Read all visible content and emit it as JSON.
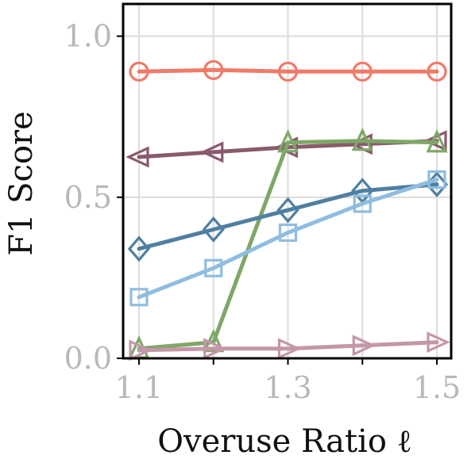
{
  "chart_data": {
    "type": "line",
    "xlabel": "Overuse Ratio ℓ",
    "ylabel": "F1 Score",
    "xlim": [
      1.1,
      1.5
    ],
    "ylim": [
      0.0,
      1.1
    ],
    "x_ticks": [
      1.1,
      1.3,
      1.5
    ],
    "x_tick_labels": [
      "1.1",
      "1.3",
      "1.5"
    ],
    "y_ticks": [
      0.0,
      0.5,
      1.0
    ],
    "y_tick_labels": [
      "0.0",
      "0.5",
      "1.0"
    ],
    "grid": true,
    "x": [
      1.1,
      1.2,
      1.3,
      1.4,
      1.5
    ],
    "series": [
      {
        "marker": "circle",
        "color": "#f07a68",
        "values": [
          0.89,
          0.895,
          0.89,
          0.89,
          0.89
        ]
      },
      {
        "marker": "triangle-left",
        "color": "#8a5a6e",
        "values": [
          0.625,
          0.64,
          0.655,
          0.665,
          0.675
        ]
      },
      {
        "marker": "triangle-up",
        "color": "#7fa768",
        "values": [
          0.03,
          0.05,
          0.67,
          0.675,
          0.67
        ]
      },
      {
        "marker": "diamond",
        "color": "#4f7fa2",
        "values": [
          0.34,
          0.4,
          0.46,
          0.52,
          0.54
        ]
      },
      {
        "marker": "square",
        "color": "#8fbde0",
        "values": [
          0.19,
          0.28,
          0.39,
          0.48,
          0.555
        ]
      },
      {
        "marker": "triangle-right",
        "color": "#c497a8",
        "values": [
          0.025,
          0.03,
          0.03,
          0.04,
          0.05
        ]
      }
    ]
  }
}
